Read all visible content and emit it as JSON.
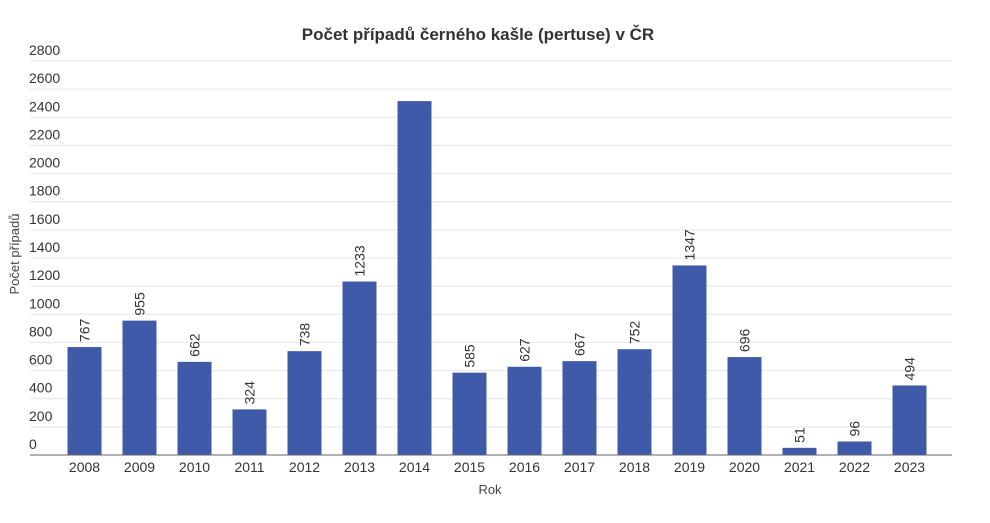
{
  "chart_data": {
    "type": "bar",
    "title": "Počet případů černého kašle (pertuse) v ČR",
    "xlabel": "Rok",
    "ylabel": "Počet případů",
    "categories": [
      "2008",
      "2009",
      "2010",
      "2011",
      "2012",
      "2013",
      "2014",
      "2015",
      "2016",
      "2017",
      "2018",
      "2019",
      "2020",
      "2021",
      "2022",
      "2023"
    ],
    "values": [
      767,
      955,
      662,
      324,
      738,
      1233,
      2515,
      585,
      627,
      667,
      752,
      1347,
      696,
      51,
      96,
      494
    ],
    "data_labels": [
      "767",
      "955",
      "662",
      "324",
      "738",
      "1233",
      "",
      "585",
      "627",
      "667",
      "752",
      "1347",
      "696",
      "51",
      "96",
      "494"
    ],
    "ylim": [
      0,
      2800
    ],
    "yticks": [
      0,
      200,
      400,
      600,
      800,
      1000,
      1200,
      1400,
      1600,
      1800,
      2000,
      2200,
      2400,
      2600,
      2800
    ],
    "grid": true,
    "legend": "none",
    "bar_color": "#3f5aa8"
  }
}
